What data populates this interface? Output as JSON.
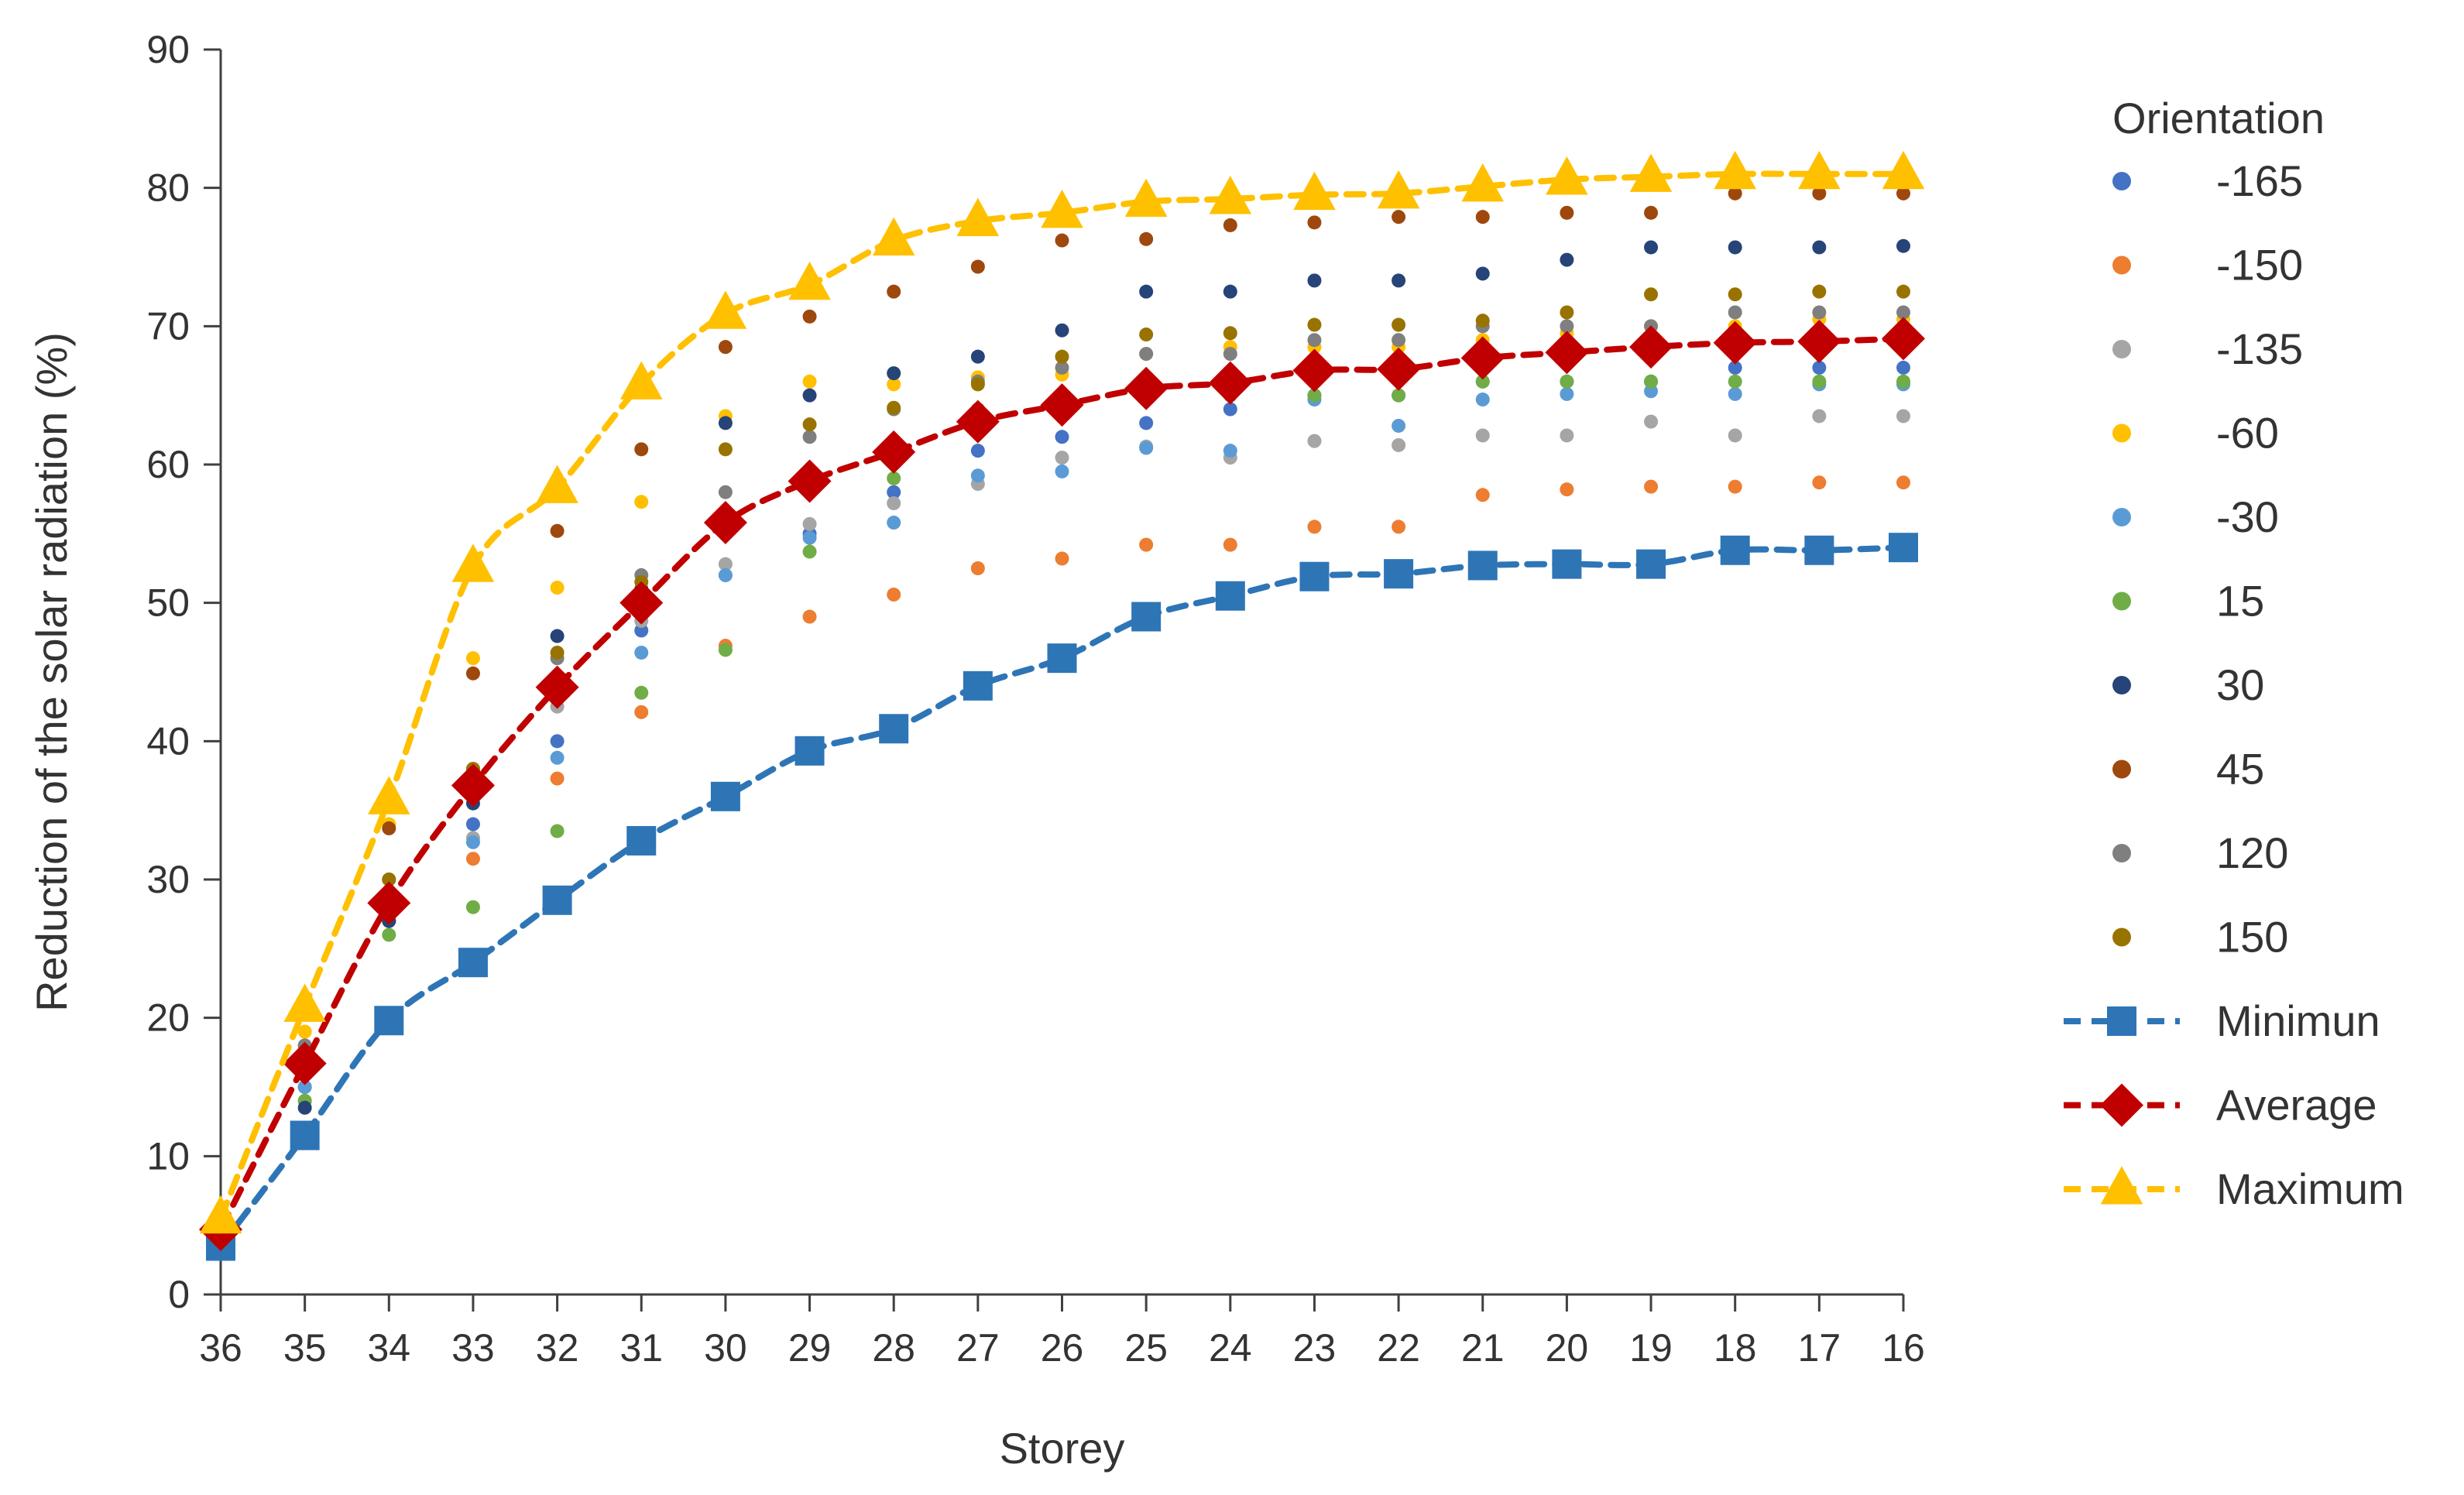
{
  "chart_data": {
    "type": "scatter",
    "xlabel": "Storey",
    "ylabel": "Reduction of the solar radiation (%)",
    "x": [
      36,
      35,
      34,
      33,
      32,
      31,
      30,
      29,
      28,
      27,
      26,
      25,
      24,
      23,
      22,
      21,
      20,
      19,
      18,
      17,
      16
    ],
    "x_tick_labels": [
      "36",
      "35",
      "34",
      "33",
      "32",
      "31",
      "30",
      "29",
      "28",
      "27",
      "26",
      "25",
      "24",
      "23",
      "22",
      "21",
      "20",
      "19",
      "18",
      "17",
      "16"
    ],
    "ylim": [
      0,
      90
    ],
    "y_ticks": [
      0,
      10,
      20,
      30,
      40,
      50,
      60,
      70,
      80,
      90
    ],
    "y_tick_labels": [
      "0",
      "10",
      "20",
      "30",
      "40",
      "50",
      "60",
      "70",
      "80",
      "90"
    ],
    "grid": false,
    "legend_title": "Orientation",
    "legend_position": "right",
    "series": [
      {
        "name": "-165",
        "kind": "points",
        "color": "#4472C4",
        "values": [
          4,
          15,
          28,
          34,
          40,
          48,
          52,
          55,
          58,
          61,
          62,
          63,
          64,
          65,
          65,
          66,
          66,
          66,
          67,
          67,
          67
        ]
      },
      {
        "name": "-150",
        "kind": "points",
        "color": "#ED7D31",
        "values": [
          4,
          14,
          27,
          31.5,
          37.3,
          42.1,
          46.9,
          49,
          50.6,
          52.5,
          53.2,
          54.2,
          54.2,
          55.5,
          55.5,
          57.8,
          58.2,
          58.4,
          58.4,
          58.7,
          58.7
        ]
      },
      {
        "name": "-135",
        "kind": "points",
        "color": "#A5A5A5",
        "values": [
          4,
          16,
          27,
          33,
          42.5,
          48.7,
          52.8,
          55.7,
          57.2,
          58.6,
          60.5,
          61.3,
          60.5,
          61.7,
          61.4,
          62.1,
          62.1,
          63.1,
          62.1,
          63.5,
          63.5
        ]
      },
      {
        "name": "-60",
        "kind": "points",
        "color": "#FFC000",
        "values": [
          5,
          19,
          34,
          46,
          51.1,
          57.3,
          63.5,
          66,
          65.8,
          66.3,
          66.5,
          68,
          68.5,
          68.5,
          68.5,
          69,
          69.5,
          70,
          70,
          70.5,
          70.5
        ]
      },
      {
        "name": "-30",
        "kind": "points",
        "color": "#5B9BD5",
        "values": [
          4,
          15,
          27,
          32.7,
          38.8,
          46.4,
          52,
          54.7,
          55.8,
          59.2,
          59.5,
          61.2,
          61,
          64.7,
          62.8,
          64.7,
          65.1,
          65.3,
          65.1,
          65.8,
          65.8
        ]
      },
      {
        "name": "15",
        "kind": "points",
        "color": "#70AD47",
        "values": [
          4,
          14,
          26,
          28,
          33.5,
          43.5,
          46.6,
          53.7,
          59,
          64,
          64,
          65,
          65,
          65,
          65,
          66,
          66,
          66,
          66,
          66,
          66
        ]
      },
      {
        "name": "30",
        "kind": "points",
        "color": "#264478",
        "values": [
          4,
          13.5,
          27,
          35.5,
          47.6,
          51,
          63,
          65,
          66.6,
          67.8,
          69.7,
          72.5,
          72.5,
          73.3,
          73.3,
          73.8,
          74.8,
          75.7,
          75.7,
          75.7,
          75.8
        ]
      },
      {
        "name": "45",
        "kind": "points",
        "color": "#9E480E",
        "values": [
          5,
          18,
          33.7,
          44.9,
          55.2,
          61.1,
          68.5,
          70.7,
          72.5,
          74.3,
          76.2,
          76.3,
          77.3,
          77.5,
          77.9,
          77.9,
          78.2,
          78.2,
          79.6,
          79.6,
          79.6
        ]
      },
      {
        "name": "120",
        "kind": "points",
        "color": "#7F7F7F",
        "values": [
          4,
          18,
          30,
          38,
          46,
          52,
          58,
          62,
          64,
          66,
          67,
          68,
          68,
          69,
          69,
          70,
          70,
          70,
          71,
          71,
          71
        ]
      },
      {
        "name": "150",
        "kind": "points",
        "color": "#997300",
        "values": [
          4,
          17,
          30,
          38,
          46.4,
          51.5,
          61.1,
          62.9,
          64.1,
          65.8,
          67.8,
          69.4,
          69.5,
          70.1,
          70.1,
          70.4,
          71,
          72.3,
          72.3,
          72.5,
          72.5
        ]
      },
      {
        "name": "Minimun",
        "kind": "line",
        "marker": "square",
        "color": "#2E75B6",
        "values": [
          3.5,
          11.5,
          19.8,
          24,
          28.5,
          32.8,
          36,
          39.3,
          40.9,
          44,
          46,
          49,
          50.5,
          51.9,
          52.1,
          52.7,
          52.8,
          52.8,
          53.8,
          53.8,
          54
        ]
      },
      {
        "name": "Average",
        "kind": "line",
        "marker": "diamond",
        "color": "#C00000",
        "values": [
          4.7,
          16.7,
          28.3,
          36.8,
          43.9,
          50,
          55.8,
          58.8,
          60.9,
          63.1,
          64.3,
          65.5,
          65.9,
          66.8,
          66.9,
          67.7,
          68.1,
          68.5,
          68.8,
          68.9,
          69.1
        ]
      },
      {
        "name": "Maximum",
        "kind": "line",
        "marker": "triangle",
        "color": "#FFC000",
        "values": [
          5.5,
          20.8,
          35.8,
          52.6,
          58.3,
          65.8,
          70.9,
          73,
          76.2,
          77.6,
          78.2,
          79,
          79.2,
          79.5,
          79.6,
          80.1,
          80.6,
          80.8,
          81,
          81,
          81
        ]
      }
    ]
  }
}
